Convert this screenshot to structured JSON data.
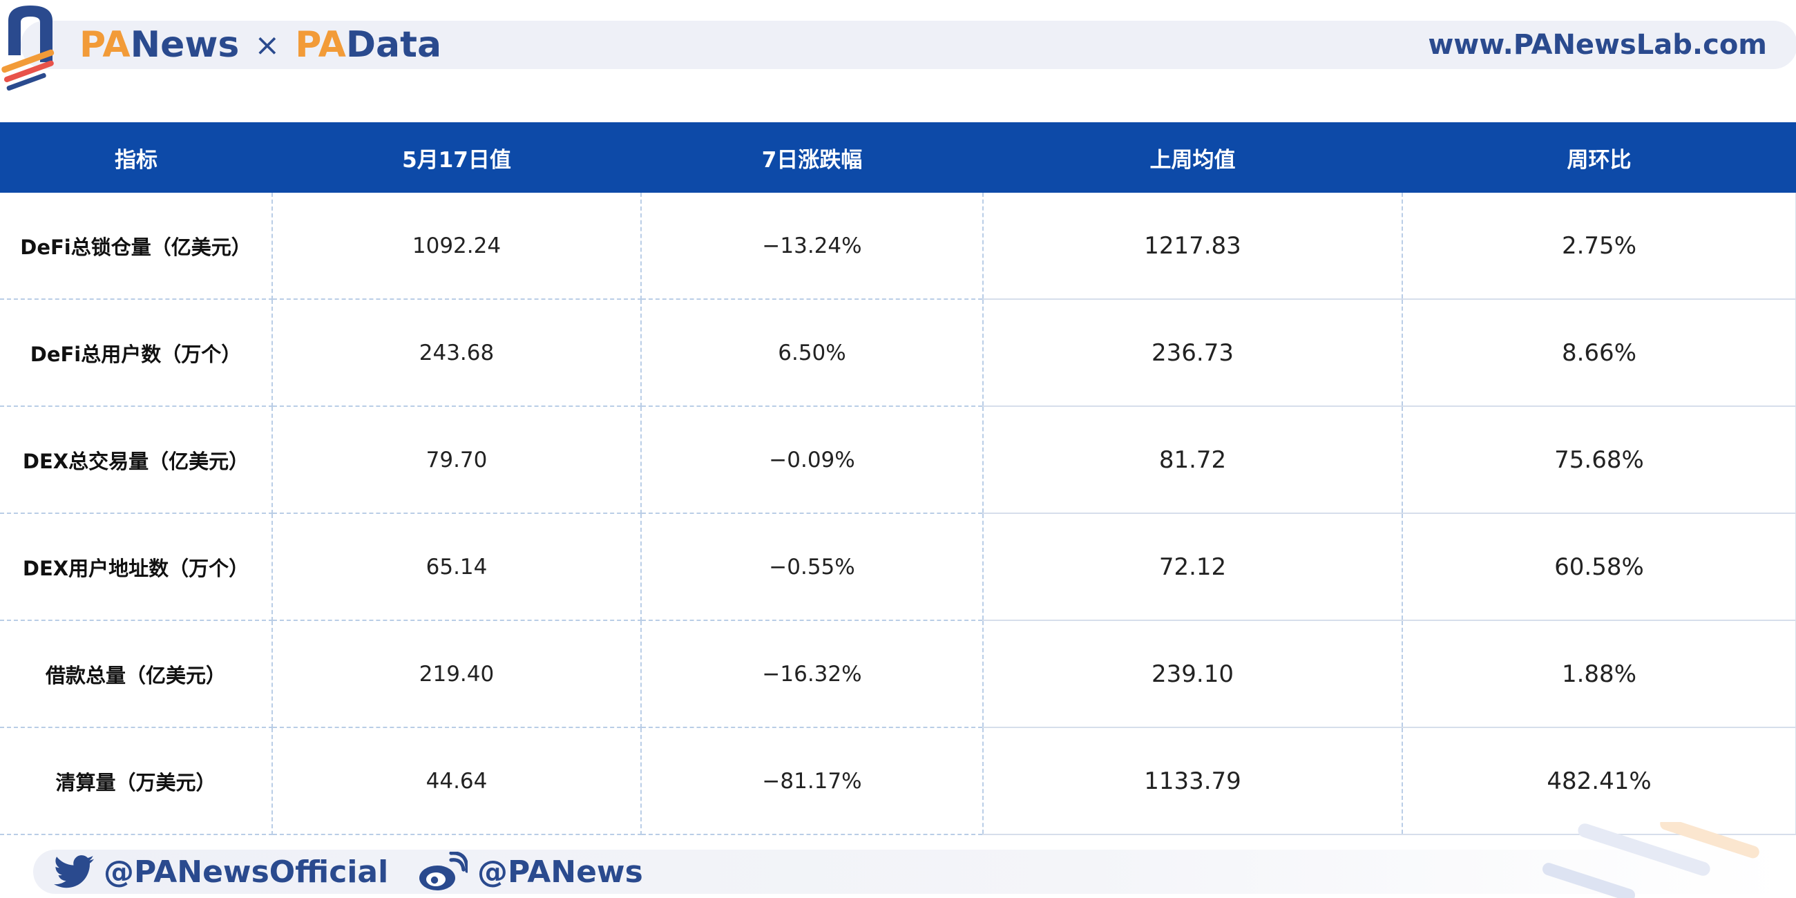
{
  "header": {
    "brand_left_prefix": "PA",
    "brand_left_suffix": "News",
    "brand_separator": "×",
    "brand_right_prefix": "PA",
    "brand_right_suffix": "Data",
    "url": "www.PANewsLab.com"
  },
  "table": {
    "columns": [
      "指标",
      "5月17日值",
      "7日涨跌幅",
      "上周均值",
      "周环比"
    ],
    "rows": [
      [
        "DeFi总锁仓量（亿美元）",
        "1092.24",
        "−13.24%",
        "1217.83",
        "2.75%"
      ],
      [
        "DeFi总用户数（万个）",
        "243.68",
        "6.50%",
        "236.73",
        "8.66%"
      ],
      [
        "DEX总交易量（亿美元）",
        "79.70",
        "−0.09%",
        "81.72",
        "75.68%"
      ],
      [
        "DEX用户地址数（万个）",
        "65.14",
        "−0.55%",
        "72.12",
        "60.58%"
      ],
      [
        "借款总量（亿美元）",
        "219.40",
        "−16.32%",
        "239.10",
        "1.88%"
      ],
      [
        "清算量（万美元）",
        "44.64",
        "−81.17%",
        "1133.79",
        "482.41%"
      ]
    ]
  },
  "footer": {
    "twitter_handle": "@PANewsOfficial",
    "weibo_handle": "@PANews"
  },
  "colors": {
    "header_blue": "#0d4aa8",
    "brand_navy": "#2a4a8e",
    "brand_orange": "#f29b38"
  }
}
